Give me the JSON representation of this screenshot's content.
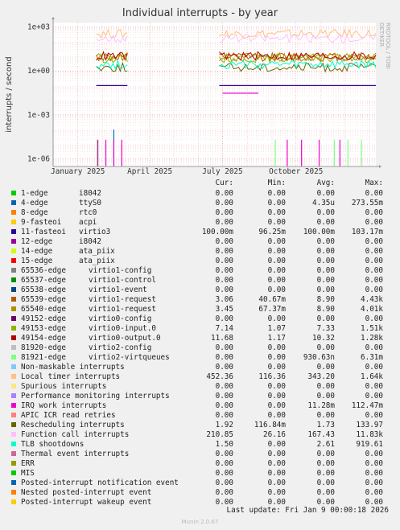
{
  "title": "Individual interrupts - by year",
  "side_label": "RRDTOOL / TOBI OETIKER",
  "footer": {
    "last_update": "Last update: Fri Jan  9 00:00:18 2026",
    "version": "Munin 2.0.67"
  },
  "headers": {
    "cur": "Cur:",
    "min": "Min:",
    "avg": "Avg:",
    "max": "Max:"
  },
  "chart_data": {
    "type": "line",
    "title": "Individual interrupts - by year",
    "ylabel": "interrupts / second",
    "xlabel": "",
    "y_scale": "log",
    "ylim": [
      3e-07,
      2000
    ],
    "y_ticks": [
      {
        "value": 1000,
        "label": "1e+03"
      },
      {
        "value": 1,
        "label": "1e+00"
      },
      {
        "value": 0.001,
        "label": "1e-03"
      },
      {
        "value": 1e-06,
        "label": "1e-06"
      }
    ],
    "x_range": [
      "2024-12-01",
      "2026-01-09"
    ],
    "x_ticks": [
      {
        "date": "2025-01-01",
        "label": "January 2025"
      },
      {
        "date": "2025-04-01",
        "label": "April 2025"
      },
      {
        "date": "2025-07-01",
        "label": "July 2025"
      },
      {
        "date": "2025-10-01",
        "label": "October 2025"
      }
    ],
    "grid": true,
    "legend_placement": "bottom",
    "series": [
      {
        "name": "1-edge",
        "device": "i8042",
        "color": "#00cc00",
        "cur": "0.00",
        "min": "0.00",
        "avg": "0.00",
        "max": "0.00"
      },
      {
        "name": "4-edge",
        "device": "ttyS0",
        "color": "#0066b3",
        "cur": "0.00",
        "min": "0.00",
        "avg": "4.35u",
        "max": "273.55m",
        "points": [
          [
            "2025-02-15",
            0.0001
          ],
          [
            "2025-02-15",
            3e-07
          ]
        ]
      },
      {
        "name": "8-edge",
        "device": "rtc0",
        "color": "#ff8000",
        "cur": "0.00",
        "min": "0.00",
        "avg": "0.00",
        "max": "0.00"
      },
      {
        "name": "9-fasteoi",
        "device": "acpi",
        "color": "#ffcc00",
        "cur": "0.00",
        "min": "0.00",
        "avg": "0.00",
        "max": "0.00"
      },
      {
        "name": "11-fasteoi",
        "device": "virtio3",
        "color": "#330099",
        "cur": "100.00m",
        "min": "96.25m",
        "avg": "100.00m",
        "max": "103.17m",
        "points": [
          [
            "2025-01-24",
            0.1
          ],
          [
            "2025-03-04",
            0.1
          ]
        ],
        "points2": [
          [
            "2025-06-27",
            0.1
          ],
          [
            "2026-01-09",
            0.1
          ]
        ]
      },
      {
        "name": "12-edge",
        "device": "i8042",
        "color": "#990099",
        "cur": "0.00",
        "min": "0.00",
        "avg": "0.00",
        "max": "0.00"
      },
      {
        "name": "14-edge",
        "device": "ata_piix",
        "color": "#ccff00",
        "cur": "0.00",
        "min": "0.00",
        "avg": "0.00",
        "max": "0.00"
      },
      {
        "name": "15-edge",
        "device": "ata_piix",
        "color": "#ff0000",
        "cur": "0.00",
        "min": "0.00",
        "avg": "0.00",
        "max": "0.00"
      },
      {
        "name": "65536-edge",
        "device": "virtio1-config",
        "color": "#808080",
        "cur": "0.00",
        "min": "0.00",
        "avg": "0.00",
        "max": "0.00"
      },
      {
        "name": "65537-edge",
        "device": "virtio1-control",
        "color": "#008f00",
        "cur": "0.00",
        "min": "0.00",
        "avg": "0.00",
        "max": "0.00"
      },
      {
        "name": "65538-edge",
        "device": "virtio1-event",
        "color": "#00487d",
        "cur": "0.00",
        "min": "0.00",
        "avg": "0.00",
        "max": "0.00"
      },
      {
        "name": "65539-edge",
        "device": "virtio1-request",
        "color": "#b35a00",
        "cur": "3.06",
        "min": "40.67m",
        "avg": "8.90",
        "max": "4.43k"
      },
      {
        "name": "65540-edge",
        "device": "virtio1-request",
        "color": "#b38f00",
        "cur": "3.45",
        "min": "67.37m",
        "avg": "8.90",
        "max": "4.01k"
      },
      {
        "name": "49152-edge",
        "device": "virtio0-config",
        "color": "#6b006b",
        "cur": "0.00",
        "min": "0.00",
        "avg": "0.00",
        "max": "0.00"
      },
      {
        "name": "49153-edge",
        "device": "virtio0-input.0",
        "color": "#8fb300",
        "cur": "7.14",
        "min": "1.07",
        "avg": "7.33",
        "max": "1.51k"
      },
      {
        "name": "49154-edge",
        "device": "virtio0-output.0",
        "color": "#b30000",
        "cur": "11.68",
        "min": "1.17",
        "avg": "10.32",
        "max": "1.28k"
      },
      {
        "name": "81920-edge",
        "device": "virtio2-config",
        "color": "#bebebe",
        "cur": "0.00",
        "min": "0.00",
        "avg": "0.00",
        "max": "0.00"
      },
      {
        "name": "81921-edge",
        "device": "virtio2-virtqueues",
        "color": "#80ff80",
        "cur": "0.00",
        "min": "0.00",
        "avg": "930.63n",
        "max": "6.31m"
      },
      {
        "name": "Non-maskable interrupts",
        "device": "",
        "color": "#80c9ff",
        "cur": "0.00",
        "min": "0.00",
        "avg": "0.00",
        "max": "0.00"
      },
      {
        "name": "Local timer interrupts",
        "device": "",
        "color": "#ffc080",
        "cur": "452.36",
        "min": "116.36",
        "avg": "343.20",
        "max": "1.64k"
      },
      {
        "name": "Spurious interrupts",
        "device": "",
        "color": "#ffe680",
        "cur": "0.00",
        "min": "0.00",
        "avg": "0.00",
        "max": "0.00"
      },
      {
        "name": "Performance monitoring interrupts",
        "device": "",
        "color": "#aa80ff",
        "cur": "0.00",
        "min": "0.00",
        "avg": "0.00",
        "max": "0.00"
      },
      {
        "name": "IRQ work interrupts",
        "device": "",
        "color": "#ee00cc",
        "cur": "0.00",
        "min": "0.00",
        "avg": "11.28m",
        "max": "112.47m"
      },
      {
        "name": "APIC ICR read retries",
        "device": "",
        "color": "#ff8080",
        "cur": "0.00",
        "min": "0.00",
        "avg": "0.00",
        "max": "0.00"
      },
      {
        "name": "Rescheduling interrupts",
        "device": "",
        "color": "#666600",
        "cur": "1.92",
        "min": "116.84m",
        "avg": "1.73",
        "max": "133.97"
      },
      {
        "name": "Function call interrupts",
        "device": "",
        "color": "#ffbfff",
        "cur": "210.85",
        "min": "26.16",
        "avg": "167.43",
        "max": "11.83k"
      },
      {
        "name": "TLB shootdowns",
        "device": "",
        "color": "#00ffcc",
        "cur": "1.50",
        "min": "0.00",
        "avg": "2.61",
        "max": "919.61"
      },
      {
        "name": "Thermal event interrupts",
        "device": "",
        "color": "#cc6699",
        "cur": "0.00",
        "min": "0.00",
        "avg": "0.00",
        "max": "0.00"
      },
      {
        "name": "ERR",
        "device": "",
        "color": "#999900",
        "cur": "0.00",
        "min": "0.00",
        "avg": "0.00",
        "max": "0.00"
      },
      {
        "name": "MIS",
        "device": "",
        "color": "#00cc00",
        "cur": "0.00",
        "min": "0.00",
        "avg": "0.00",
        "max": "0.00"
      },
      {
        "name": "Posted-interrupt notification event",
        "device": "",
        "color": "#0066b3",
        "cur": "0.00",
        "min": "0.00",
        "avg": "0.00",
        "max": "0.00"
      },
      {
        "name": "Nested posted-interrupt event",
        "device": "",
        "color": "#ff8000",
        "cur": "0.00",
        "min": "0.00",
        "avg": "0.00",
        "max": "0.00"
      },
      {
        "name": "Posted-interrupt wakeup event",
        "device": "",
        "color": "#ffcc00",
        "cur": "0.00",
        "min": "0.00",
        "avg": "0.00",
        "max": "0.00"
      }
    ]
  }
}
